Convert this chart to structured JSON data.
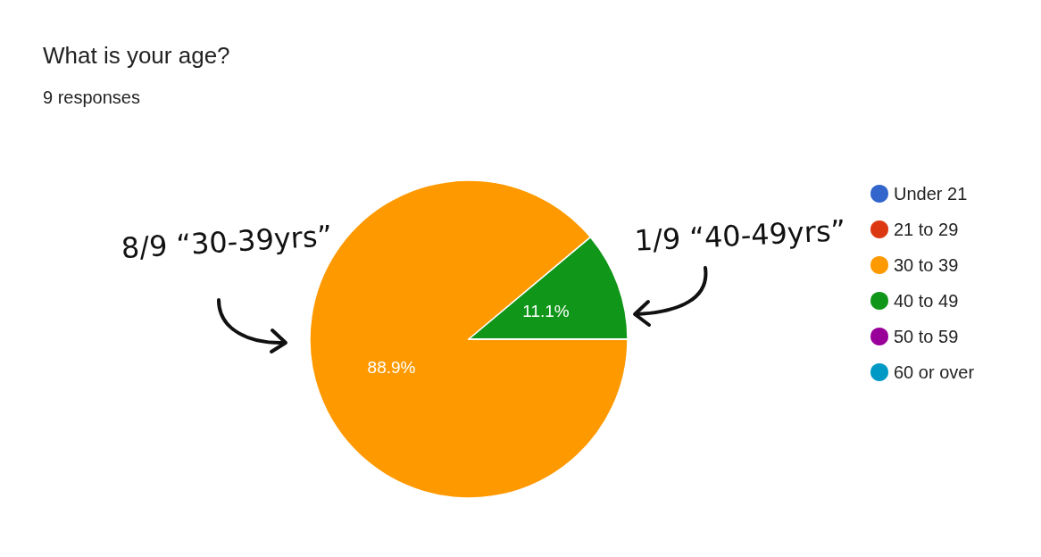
{
  "chart_data": {
    "type": "pie",
    "title": "What is your age?",
    "subtitle": "9 responses",
    "categories": [
      "Under 21",
      "21 to 29",
      "30 to 39",
      "40 to 49",
      "50 to 59",
      "60 or over"
    ],
    "values": [
      0,
      0,
      88.9,
      11.1,
      0,
      0
    ],
    "colors": [
      "#3366cc",
      "#dc3912",
      "#ff9900",
      "#109618",
      "#990099",
      "#0099c6"
    ],
    "value_labels": [
      null,
      null,
      "88.9%",
      "11.1%",
      null,
      null
    ],
    "legend": "right",
    "annotations": [
      "8/9 “30-39yrs”",
      "1/9 “40-49yrs”"
    ]
  }
}
